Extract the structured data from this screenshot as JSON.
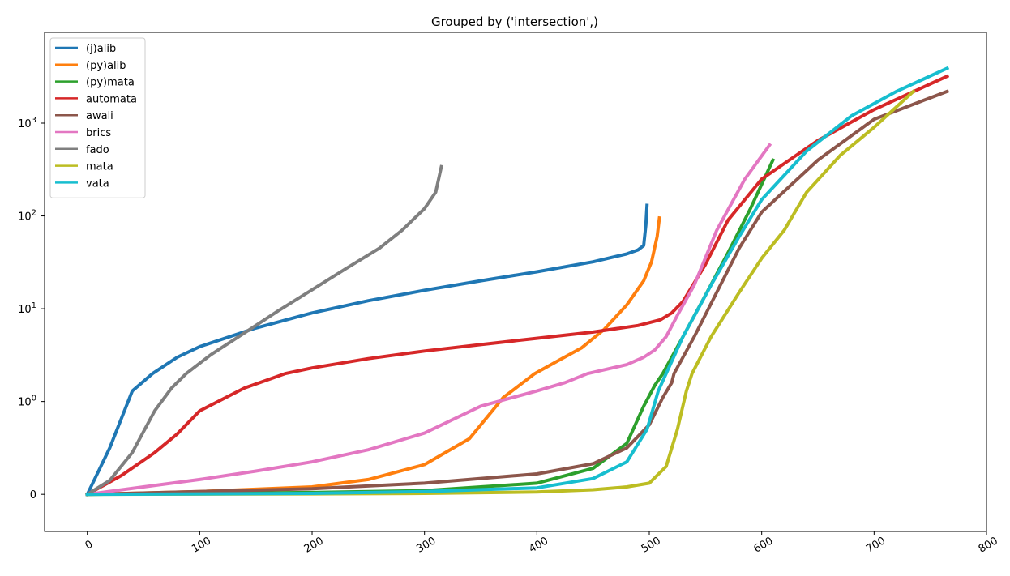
{
  "chart_data": {
    "type": "line",
    "title": "Grouped by ('intersection',)",
    "xlabel": "",
    "ylabel": "",
    "xscale": "linear",
    "yscale": "symlog",
    "symlog_linthresh": 1,
    "xlim": [
      -38,
      800
    ],
    "ylim": [
      -0.4,
      9500
    ],
    "x_ticks": [
      {
        "value": 0,
        "label": "0"
      },
      {
        "value": 100,
        "label": "100"
      },
      {
        "value": 200,
        "label": "200"
      },
      {
        "value": 300,
        "label": "300"
      },
      {
        "value": 400,
        "label": "400"
      },
      {
        "value": 500,
        "label": "500"
      },
      {
        "value": 600,
        "label": "600"
      },
      {
        "value": 700,
        "label": "700"
      },
      {
        "value": 800,
        "label": "800"
      }
    ],
    "y_ticks": [
      {
        "value": 0,
        "label": "0",
        "sup": ""
      },
      {
        "value": 1,
        "label": "10",
        "sup": "0"
      },
      {
        "value": 10,
        "label": "10",
        "sup": "1"
      },
      {
        "value": 100,
        "label": "10",
        "sup": "2"
      },
      {
        "value": 1000,
        "label": "10",
        "sup": "3"
      }
    ],
    "grid": false,
    "legend_position": "top-left",
    "series": [
      {
        "name": "(j)alib",
        "color": "#1f77b4",
        "points": [
          [
            0,
            0
          ],
          [
            20,
            0.5
          ],
          [
            40,
            1.3
          ],
          [
            58,
            2.0
          ],
          [
            80,
            3.0
          ],
          [
            100,
            3.9
          ],
          [
            150,
            6.2
          ],
          [
            200,
            9.0
          ],
          [
            250,
            12.2
          ],
          [
            300,
            15.8
          ],
          [
            350,
            20.0
          ],
          [
            400,
            25.0
          ],
          [
            450,
            32.0
          ],
          [
            480,
            39.0
          ],
          [
            490,
            43.0
          ],
          [
            495,
            48.0
          ],
          [
            497,
            80
          ],
          [
            498,
            130
          ]
        ]
      },
      {
        "name": "(py)alib",
        "color": "#ff7f0e",
        "points": [
          [
            0,
            0
          ],
          [
            100,
            0.03
          ],
          [
            200,
            0.08
          ],
          [
            250,
            0.16
          ],
          [
            300,
            0.32
          ],
          [
            340,
            0.6
          ],
          [
            370,
            1.1
          ],
          [
            398,
            2.0
          ],
          [
            420,
            2.8
          ],
          [
            440,
            3.8
          ],
          [
            460,
            6.0
          ],
          [
            480,
            11
          ],
          [
            495,
            20
          ],
          [
            502,
            32
          ],
          [
            507,
            60
          ],
          [
            509,
            95
          ]
        ]
      },
      {
        "name": "(py)mata",
        "color": "#2ca02c",
        "points": [
          [
            0,
            0
          ],
          [
            200,
            0.02
          ],
          [
            300,
            0.04
          ],
          [
            400,
            0.12
          ],
          [
            450,
            0.28
          ],
          [
            480,
            0.55
          ],
          [
            495,
            0.95
          ],
          [
            505,
            1.5
          ],
          [
            512,
            2.0
          ],
          [
            530,
            5
          ],
          [
            550,
            14
          ],
          [
            570,
            40
          ],
          [
            590,
            120
          ],
          [
            610,
            400
          ]
        ]
      },
      {
        "name": "automata",
        "color": "#d62728",
        "points": [
          [
            0,
            0
          ],
          [
            30,
            0.2
          ],
          [
            60,
            0.45
          ],
          [
            80,
            0.65
          ],
          [
            100,
            0.9
          ],
          [
            140,
            1.4
          ],
          [
            176,
            2.0
          ],
          [
            200,
            2.3
          ],
          [
            250,
            2.9
          ],
          [
            300,
            3.5
          ],
          [
            350,
            4.1
          ],
          [
            400,
            4.8
          ],
          [
            450,
            5.6
          ],
          [
            490,
            6.6
          ],
          [
            510,
            7.6
          ],
          [
            520,
            9.0
          ],
          [
            530,
            12
          ],
          [
            550,
            30
          ],
          [
            570,
            90
          ],
          [
            600,
            250
          ],
          [
            650,
            650
          ],
          [
            700,
            1400
          ],
          [
            765,
            3200
          ]
        ]
      },
      {
        "name": "awali",
        "color": "#8c564b",
        "points": [
          [
            0,
            0
          ],
          [
            200,
            0.06
          ],
          [
            300,
            0.12
          ],
          [
            400,
            0.22
          ],
          [
            450,
            0.33
          ],
          [
            480,
            0.5
          ],
          [
            500,
            0.75
          ],
          [
            512,
            1.1
          ],
          [
            520,
            1.6
          ],
          [
            522,
            2.0
          ],
          [
            540,
            5
          ],
          [
            560,
            15
          ],
          [
            580,
            45
          ],
          [
            600,
            110
          ],
          [
            650,
            400
          ],
          [
            700,
            1100
          ],
          [
            765,
            2200
          ]
        ]
      },
      {
        "name": "brics",
        "color": "#e377c2",
        "points": [
          [
            0,
            0
          ],
          [
            50,
            0.08
          ],
          [
            100,
            0.16
          ],
          [
            150,
            0.25
          ],
          [
            200,
            0.35
          ],
          [
            250,
            0.48
          ],
          [
            300,
            0.66
          ],
          [
            350,
            0.95
          ],
          [
            400,
            1.3
          ],
          [
            425,
            1.6
          ],
          [
            445,
            2.0
          ],
          [
            480,
            2.5
          ],
          [
            495,
            3.0
          ],
          [
            505,
            3.6
          ],
          [
            515,
            5.0
          ],
          [
            525,
            8.5
          ],
          [
            540,
            18
          ],
          [
            560,
            70
          ],
          [
            585,
            250
          ],
          [
            607,
            580
          ]
        ]
      },
      {
        "name": "fado",
        "color": "#7f7f7f",
        "points": [
          [
            0,
            0
          ],
          [
            20,
            0.15
          ],
          [
            40,
            0.45
          ],
          [
            60,
            0.9
          ],
          [
            75,
            1.4
          ],
          [
            88,
            2.0
          ],
          [
            110,
            3.2
          ],
          [
            140,
            5.5
          ],
          [
            170,
            9.5
          ],
          [
            200,
            16
          ],
          [
            230,
            27
          ],
          [
            260,
            45
          ],
          [
            280,
            70
          ],
          [
            300,
            120
          ],
          [
            310,
            180
          ],
          [
            315,
            340
          ]
        ]
      },
      {
        "name": "mata",
        "color": "#bcbd22",
        "points": [
          [
            0,
            0
          ],
          [
            200,
            0.005
          ],
          [
            300,
            0.01
          ],
          [
            400,
            0.025
          ],
          [
            450,
            0.05
          ],
          [
            480,
            0.08
          ],
          [
            500,
            0.12
          ],
          [
            515,
            0.3
          ],
          [
            525,
            0.7
          ],
          [
            533,
            1.3
          ],
          [
            538,
            2.0
          ],
          [
            555,
            5
          ],
          [
            580,
            15
          ],
          [
            600,
            35
          ],
          [
            620,
            70
          ],
          [
            640,
            180
          ],
          [
            670,
            450
          ],
          [
            700,
            900
          ],
          [
            735,
            2200
          ]
        ]
      },
      {
        "name": "vata",
        "color": "#17becf",
        "points": [
          [
            0,
            0
          ],
          [
            200,
            0.01
          ],
          [
            300,
            0.03
          ],
          [
            400,
            0.07
          ],
          [
            450,
            0.17
          ],
          [
            480,
            0.35
          ],
          [
            498,
            0.7
          ],
          [
            508,
            1.3
          ],
          [
            515,
            2.0
          ],
          [
            530,
            5
          ],
          [
            555,
            18
          ],
          [
            580,
            60
          ],
          [
            600,
            150
          ],
          [
            640,
            500
          ],
          [
            680,
            1200
          ],
          [
            720,
            2200
          ],
          [
            765,
            3900
          ]
        ]
      }
    ]
  }
}
